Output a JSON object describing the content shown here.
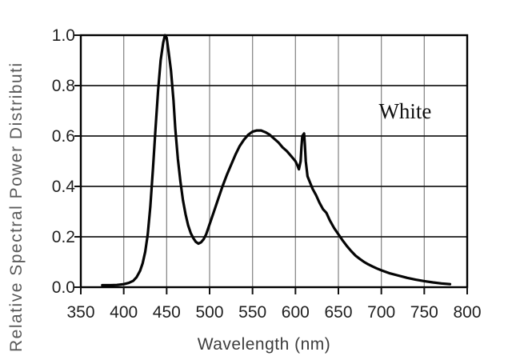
{
  "colors": {
    "background": "#ffffff",
    "curve": "#050505",
    "plot_border": "#000000",
    "horizontal_grid": "#1c1c1c",
    "vertical_grid": "#8a8a8a",
    "tick_label": "#1f1f1f",
    "x_title": "#3d3d3d",
    "y_title": "#5a5a5a",
    "annotation": "#101010"
  },
  "chart_data": {
    "type": "line",
    "title": "",
    "xlabel": "Wavelength (nm)",
    "ylabel": "Relative Spectral Power Distributi",
    "xlim": [
      350,
      800
    ],
    "ylim": [
      0.0,
      1.0
    ],
    "x_ticks": [
      350,
      400,
      450,
      500,
      550,
      600,
      650,
      700,
      750,
      800
    ],
    "y_ticks": [
      0.0,
      0.2,
      0.4,
      0.6,
      0.8,
      1.0
    ],
    "y_tick_decimals": 1,
    "grid": "both",
    "legend_position": "none",
    "annotations": [
      {
        "text": "White",
        "x": 697,
        "y": 0.67
      }
    ],
    "series": [
      {
        "name": "White",
        "x": [
          375,
          385,
          392,
          400,
          406,
          411,
          415,
          419,
          422,
          425,
          428,
          431,
          434,
          437,
          440,
          443,
          446,
          448,
          450,
          452,
          455,
          458,
          460,
          463,
          466,
          469,
          472,
          475,
          478,
          481,
          484,
          487,
          490,
          493,
          496,
          500,
          505,
          510,
          515,
          520,
          525,
          530,
          535,
          540,
          545,
          550,
          555,
          560,
          565,
          570,
          575,
          580,
          585,
          590,
          595,
          600,
          602,
          604,
          606,
          607,
          608,
          610,
          611,
          612,
          614,
          617,
          620,
          624,
          628,
          632,
          636,
          640,
          645,
          650,
          655,
          660,
          665,
          670,
          675,
          680,
          685,
          690,
          695,
          700,
          710,
          720,
          730,
          740,
          750,
          760,
          770,
          780
        ],
        "y": [
          0.008,
          0.008,
          0.009,
          0.012,
          0.017,
          0.025,
          0.04,
          0.065,
          0.095,
          0.14,
          0.21,
          0.32,
          0.47,
          0.63,
          0.78,
          0.9,
          0.97,
          1.0,
          0.99,
          0.94,
          0.86,
          0.74,
          0.63,
          0.51,
          0.42,
          0.345,
          0.29,
          0.245,
          0.215,
          0.195,
          0.18,
          0.173,
          0.178,
          0.19,
          0.21,
          0.25,
          0.3,
          0.35,
          0.4,
          0.445,
          0.485,
          0.525,
          0.56,
          0.585,
          0.605,
          0.617,
          0.622,
          0.622,
          0.615,
          0.605,
          0.59,
          0.575,
          0.555,
          0.54,
          0.52,
          0.5,
          0.485,
          0.468,
          0.5,
          0.555,
          0.6,
          0.61,
          0.565,
          0.5,
          0.44,
          0.415,
          0.39,
          0.365,
          0.335,
          0.31,
          0.295,
          0.265,
          0.235,
          0.21,
          0.185,
          0.163,
          0.143,
          0.125,
          0.112,
          0.1,
          0.09,
          0.082,
          0.074,
          0.067,
          0.055,
          0.046,
          0.037,
          0.03,
          0.024,
          0.019,
          0.015,
          0.012
        ]
      }
    ]
  }
}
